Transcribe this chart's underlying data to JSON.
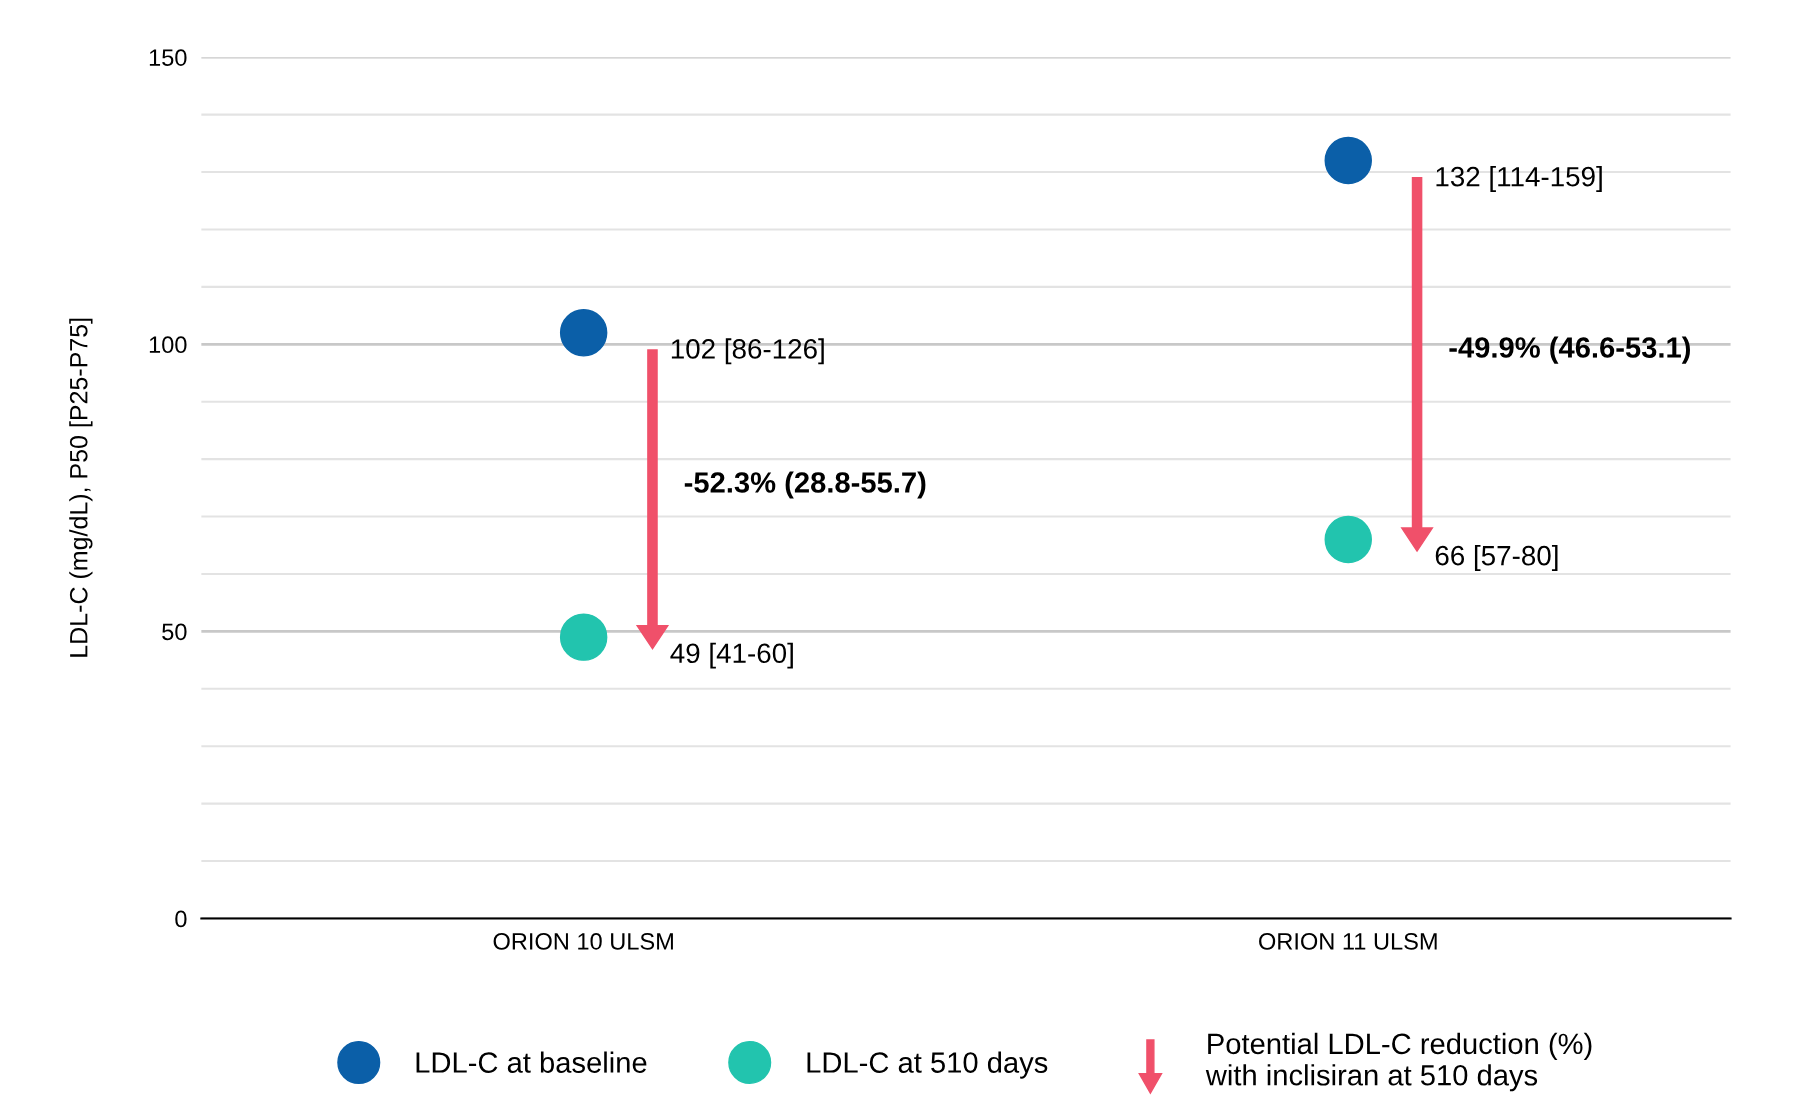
{
  "chart_data": {
    "type": "scatter",
    "ylabel": "LDL-C (mg/dL), P50 [P25-P75]",
    "categories": [
      "ORION 10 ULSM",
      "ORION 11 ULSM"
    ],
    "series": [
      {
        "name": "LDL-C at baseline",
        "color": "#0b5fa8",
        "values": [
          102,
          132
        ]
      },
      {
        "name": "LDL-C at 510 days",
        "color": "#22c4ae",
        "values": [
          49,
          66
        ]
      }
    ],
    "annotations": [
      "102 [86-126]",
      "-52.3% (28.8-55.7)",
      "49 [41-60]",
      "132 [114-159]",
      "-49.9% (46.6-53.1)",
      "66 [57-80]",
      "Potential LDL-C reduction (%)\nwith inclisiran at 510 days"
    ],
    "ylim": [
      0,
      150
    ],
    "yticks": [
      0,
      {
        "value": 10,
        "label": null
      },
      {
        "value": 20,
        "label": null
      },
      {
        "value": 30,
        "label": null
      },
      {
        "value": 40,
        "label": null
      },
      50,
      {
        "value": 60,
        "label": null
      },
      {
        "value": 70,
        "label": null
      },
      {
        "value": 80,
        "label": null
      },
      {
        "value": 90,
        "label": null
      },
      100,
      {
        "value": 110,
        "label": null
      },
      {
        "value": 120,
        "label": null
      },
      {
        "value": 130,
        "label": null
      },
      {
        "value": 140,
        "label": null
      },
      150
    ],
    "grid": "y",
    "legend": "bottom",
    "marker": "circle"
  }
}
